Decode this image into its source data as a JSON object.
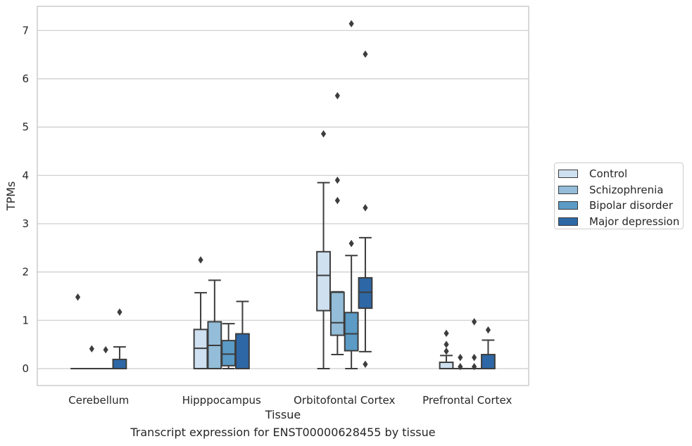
{
  "chart_data": {
    "type": "box",
    "title": "",
    "xlabel": "Tissue",
    "ylabel": "TPMs",
    "caption": "Transcript expression for ENST00000628455 by tissue",
    "categories": [
      "Cerebellum",
      "Hipppocampus",
      "Orbitofontal Cortex",
      "Prefrontal Cortex"
    ],
    "ylim": [
      -0.35,
      7.5
    ],
    "yticks": [
      0,
      1,
      2,
      3,
      4,
      5,
      6,
      7
    ],
    "grid": true,
    "legend_position": "right",
    "series": [
      {
        "name": "Control",
        "color": "#cfe0f0",
        "boxes": [
          {
            "min": 0,
            "q1": 0,
            "median": 0,
            "q3": 0,
            "max": 0,
            "outliers": [
              1.48
            ]
          },
          {
            "min": 0,
            "q1": 0,
            "median": 0.42,
            "q3": 0.81,
            "max": 1.57,
            "outliers": [
              2.25
            ]
          },
          {
            "min": 0,
            "q1": 1.2,
            "median": 1.93,
            "q3": 2.42,
            "max": 3.85,
            "outliers": [
              4.86
            ]
          },
          {
            "min": 0,
            "q1": 0,
            "median": 0,
            "q3": 0.13,
            "max": 0.27,
            "outliers": [
              0.36,
              0.5,
              0.73
            ]
          }
        ]
      },
      {
        "name": "Schizophrenia",
        "color": "#93bdd9",
        "boxes": [
          {
            "min": 0,
            "q1": 0,
            "median": 0,
            "q3": 0,
            "max": 0,
            "outliers": [
              0.41
            ]
          },
          {
            "min": 0,
            "q1": 0,
            "median": 0.48,
            "q3": 0.97,
            "max": 1.83,
            "outliers": []
          },
          {
            "min": 0.29,
            "q1": 0.69,
            "median": 0.95,
            "q3": 1.58,
            "max": 1.59,
            "outliers": [
              3.48,
              3.9,
              5.65
            ]
          },
          {
            "min": 0,
            "q1": 0,
            "median": 0,
            "q3": 0,
            "max": 0,
            "outliers": [
              0.04,
              0.23
            ]
          }
        ]
      },
      {
        "name": "Bipolar disorder",
        "color": "#5b9bc6",
        "boxes": [
          {
            "min": 0,
            "q1": 0,
            "median": 0,
            "q3": 0,
            "max": 0,
            "outliers": [
              0.39
            ]
          },
          {
            "min": 0,
            "q1": 0.06,
            "median": 0.3,
            "q3": 0.58,
            "max": 0.93,
            "outliers": []
          },
          {
            "min": 0,
            "q1": 0.37,
            "median": 0.72,
            "q3": 1.16,
            "max": 2.34,
            "outliers": [
              2.59,
              7.14
            ]
          },
          {
            "min": 0,
            "q1": 0,
            "median": 0,
            "q3": 0,
            "max": 0,
            "outliers": [
              0.04,
              0.23,
              0.97
            ]
          }
        ]
      },
      {
        "name": "Major depression",
        "color": "#2d67a6",
        "boxes": [
          {
            "min": 0,
            "q1": 0,
            "median": 0,
            "q3": 0.19,
            "max": 0.45,
            "outliers": [
              1.17
            ]
          },
          {
            "min": 0,
            "q1": 0,
            "median": 0,
            "q3": 0.72,
            "max": 1.39,
            "outliers": []
          },
          {
            "min": 0.35,
            "q1": 1.25,
            "median": 1.58,
            "q3": 1.88,
            "max": 2.71,
            "outliers": [
              0.09,
              3.33,
              6.51
            ]
          },
          {
            "min": 0,
            "q1": 0,
            "median": 0,
            "q3": 0.29,
            "max": 0.59,
            "outliers": [
              0.8
            ]
          }
        ]
      }
    ]
  }
}
